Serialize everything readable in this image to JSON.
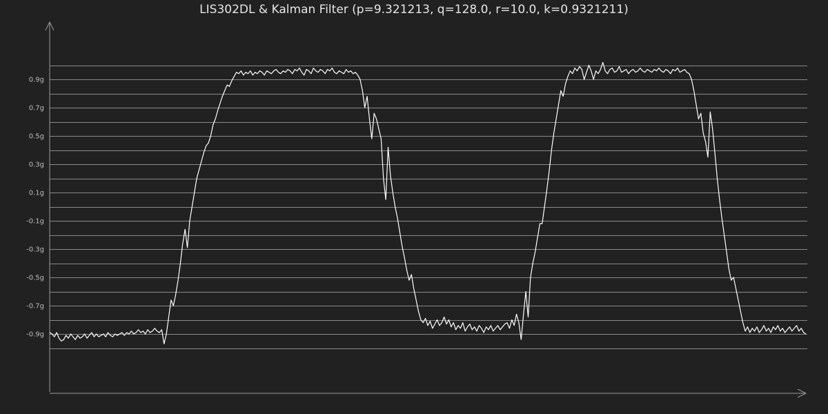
{
  "chart_data": {
    "type": "line",
    "title": "LIS302DL & Kalman Filter (p=9.321213, q=128.0, r=10.0, k=0.9321211)",
    "xlabel": "",
    "ylabel": "",
    "ylim": [
      -1.1,
      1.1
    ],
    "grid": true,
    "gridlines": [
      -1.0,
      -0.9,
      -0.8,
      -0.7,
      -0.6,
      -0.5,
      -0.4,
      -0.3,
      -0.2,
      -0.1,
      0.0,
      0.1,
      0.2,
      0.3,
      0.4,
      0.5,
      0.6,
      0.7,
      0.8,
      0.9,
      1.0
    ],
    "yticks": [
      {
        "value": 0.9,
        "label": "0.9g"
      },
      {
        "value": 0.7,
        "label": "0.7g"
      },
      {
        "value": 0.5,
        "label": "0.5g"
      },
      {
        "value": 0.3,
        "label": "0.3g"
      },
      {
        "value": 0.1,
        "label": "0.1g"
      },
      {
        "value": -0.1,
        "label": "-0.1g"
      },
      {
        "value": -0.3,
        "label": "-0.3g"
      },
      {
        "value": -0.5,
        "label": "-0.5g"
      },
      {
        "value": -0.7,
        "label": "-0.7g"
      },
      {
        "value": -0.9,
        "label": "-0.9g"
      }
    ],
    "colors": {
      "background": "#212121",
      "line": "#ffffff",
      "grid": "#8a8a8a",
      "axis": "#9a9a9a"
    },
    "series": [
      {
        "values": [
          -0.89,
          -0.9,
          -0.92,
          -0.89,
          -0.93,
          -0.95,
          -0.94,
          -0.91,
          -0.93,
          -0.9,
          -0.92,
          -0.94,
          -0.91,
          -0.93,
          -0.92,
          -0.9,
          -0.93,
          -0.91,
          -0.89,
          -0.92,
          -0.9,
          -0.92,
          -0.91,
          -0.9,
          -0.92,
          -0.89,
          -0.91,
          -0.92,
          -0.9,
          -0.91,
          -0.9,
          -0.89,
          -0.91,
          -0.89,
          -0.9,
          -0.88,
          -0.9,
          -0.89,
          -0.87,
          -0.89,
          -0.88,
          -0.9,
          -0.87,
          -0.89,
          -0.88,
          -0.86,
          -0.88,
          -0.89,
          -0.87,
          -0.97,
          -0.9,
          -0.78,
          -0.66,
          -0.7,
          -0.62,
          -0.52,
          -0.4,
          -0.26,
          -0.16,
          -0.29,
          -0.1,
          0.0,
          0.1,
          0.2,
          0.26,
          0.32,
          0.38,
          0.43,
          0.45,
          0.5,
          0.58,
          0.62,
          0.68,
          0.73,
          0.78,
          0.82,
          0.86,
          0.85,
          0.89,
          0.92,
          0.95,
          0.94,
          0.96,
          0.93,
          0.95,
          0.94,
          0.96,
          0.93,
          0.95,
          0.94,
          0.96,
          0.95,
          0.93,
          0.96,
          0.95,
          0.94,
          0.96,
          0.97,
          0.95,
          0.94,
          0.96,
          0.95,
          0.97,
          0.96,
          0.94,
          0.97,
          0.96,
          0.98,
          0.95,
          0.93,
          0.97,
          0.96,
          0.94,
          0.98,
          0.96,
          0.95,
          0.97,
          0.96,
          0.94,
          0.97,
          0.96,
          0.98,
          0.95,
          0.94,
          0.96,
          0.95,
          0.94,
          0.97,
          0.95,
          0.96,
          0.94,
          0.95,
          0.93,
          0.9,
          0.82,
          0.7,
          0.78,
          0.62,
          0.48,
          0.66,
          0.62,
          0.55,
          0.48,
          0.2,
          0.05,
          0.42,
          0.22,
          0.1,
          0.0,
          -0.08,
          -0.18,
          -0.28,
          -0.36,
          -0.45,
          -0.52,
          -0.48,
          -0.58,
          -0.66,
          -0.74,
          -0.8,
          -0.82,
          -0.79,
          -0.84,
          -0.81,
          -0.86,
          -0.83,
          -0.8,
          -0.84,
          -0.82,
          -0.78,
          -0.83,
          -0.8,
          -0.85,
          -0.82,
          -0.87,
          -0.84,
          -0.86,
          -0.82,
          -0.88,
          -0.85,
          -0.83,
          -0.87,
          -0.85,
          -0.88,
          -0.84,
          -0.86,
          -0.89,
          -0.85,
          -0.87,
          -0.84,
          -0.88,
          -0.86,
          -0.84,
          -0.87,
          -0.85,
          -0.83,
          -0.82,
          -0.86,
          -0.8,
          -0.84,
          -0.76,
          -0.82,
          -0.94,
          -0.76,
          -0.6,
          -0.78,
          -0.5,
          -0.4,
          -0.32,
          -0.22,
          -0.12,
          -0.12,
          0.0,
          0.12,
          0.25,
          0.4,
          0.52,
          0.62,
          0.72,
          0.82,
          0.78,
          0.87,
          0.92,
          0.96,
          0.94,
          0.98,
          0.96,
          0.99,
          0.97,
          0.9,
          0.95,
          1.0,
          0.96,
          0.9,
          0.96,
          0.94,
          0.97,
          1.02,
          0.96,
          0.94,
          0.97,
          0.98,
          0.95,
          0.96,
          0.99,
          0.95,
          0.96,
          0.97,
          0.94,
          0.96,
          0.97,
          0.95,
          0.96,
          0.98,
          0.96,
          0.95,
          0.97,
          0.96,
          0.95,
          0.97,
          0.96,
          0.98,
          0.96,
          0.95,
          0.97,
          0.96,
          0.94,
          0.97,
          0.96,
          0.98,
          0.95,
          0.96,
          0.97,
          0.95,
          0.94,
          0.9,
          0.82,
          0.72,
          0.62,
          0.66,
          0.52,
          0.46,
          0.35,
          0.67,
          0.55,
          0.38,
          0.2,
          0.05,
          -0.08,
          -0.2,
          -0.32,
          -0.44,
          -0.52,
          -0.5,
          -0.58,
          -0.66,
          -0.74,
          -0.82,
          -0.88,
          -0.85,
          -0.89,
          -0.86,
          -0.88,
          -0.85,
          -0.89,
          -0.87,
          -0.84,
          -0.88,
          -0.86,
          -0.89,
          -0.85,
          -0.87,
          -0.84,
          -0.88,
          -0.86,
          -0.89,
          -0.87,
          -0.85,
          -0.88,
          -0.86,
          -0.84,
          -0.88,
          -0.86,
          -0.89,
          -0.9
        ]
      }
    ]
  }
}
